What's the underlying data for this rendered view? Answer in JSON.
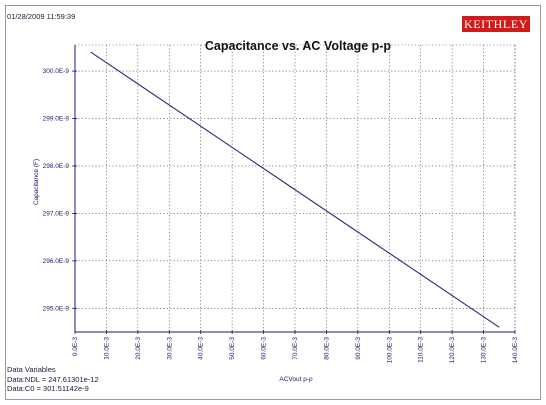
{
  "timestamp": "01/28/2009 11:59:39",
  "logo_text": "KEITHLEY",
  "data_variables": {
    "header": "Data Variables",
    "lines": [
      "Data:NDL = 247.61301e-12",
      "Data:C0 = 301.51142e-9"
    ]
  },
  "colors": {
    "line": "#2a2a7a",
    "axis": "#1a1a6a",
    "grid": "#444444",
    "logo_bg": "#d11b1b"
  },
  "chart_data": {
    "type": "line",
    "title": "Capacitance vs. AC Voltage p-p",
    "xlabel": "ACVout p-p",
    "ylabel": "Capacitance (F)",
    "xlim": [
      0.0,
      0.14
    ],
    "ylim": [
      0.0002945,
      0.00030055
    ],
    "grid": true,
    "x_ticks": [
      {
        "value": 0.0,
        "label": "0.0E-3"
      },
      {
        "value": 0.01,
        "label": "10.0E-3"
      },
      {
        "value": 0.02,
        "label": "20.0E-3"
      },
      {
        "value": 0.03,
        "label": "30.0E-3"
      },
      {
        "value": 0.04,
        "label": "40.0E-3"
      },
      {
        "value": 0.05,
        "label": "50.0E-3"
      },
      {
        "value": 0.06,
        "label": "60.0E-3"
      },
      {
        "value": 0.07,
        "label": "70.0E-3"
      },
      {
        "value": 0.08,
        "label": "80.0E-3"
      },
      {
        "value": 0.09,
        "label": "90.0E-3"
      },
      {
        "value": 0.1,
        "label": "100.0E-3"
      },
      {
        "value": 0.11,
        "label": "110.0E-3"
      },
      {
        "value": 0.12,
        "label": "120.0E-3"
      },
      {
        "value": 0.13,
        "label": "130.0E-3"
      },
      {
        "value": 0.14,
        "label": "140.0E-3"
      }
    ],
    "y_ticks": [
      {
        "value": 0.000295,
        "label": "295.0E-9"
      },
      {
        "value": 0.000296,
        "label": "296.0E-9"
      },
      {
        "value": 0.000297,
        "label": "297.0E-9"
      },
      {
        "value": 0.000298,
        "label": "298.0E-9"
      },
      {
        "value": 0.000299,
        "label": "299.0E-9"
      },
      {
        "value": 0.0003,
        "label": "300.0E-9"
      }
    ],
    "series": [
      {
        "x": [
          0.005,
          0.135
        ],
        "y": [
          0.0003004,
          0.0002946
        ]
      }
    ]
  }
}
